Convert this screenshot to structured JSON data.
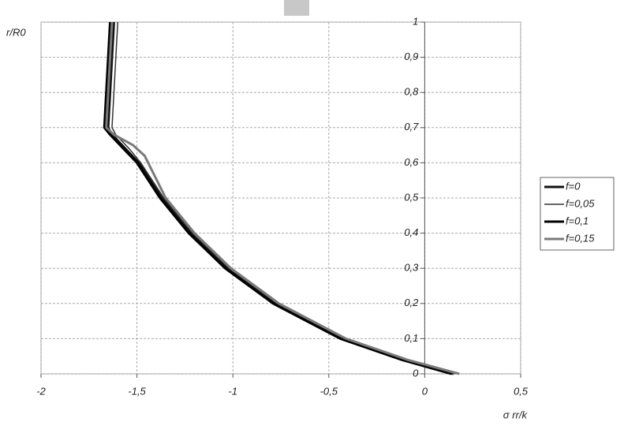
{
  "chart_data": {
    "type": "line",
    "y_label": "r/R0",
    "x_label": "σ rr/k",
    "xlim": [
      -2,
      0.5
    ],
    "xticks": [
      -2,
      {
        "value": -1.5,
        "label": "-1,5"
      },
      -1,
      {
        "value": -0.5,
        "label": "-0,5"
      },
      0,
      {
        "value": 0.5,
        "label": "0,5"
      }
    ],
    "ylim": [
      0,
      1
    ],
    "yticks": [
      0,
      {
        "value": 0.1,
        "label": "0,1"
      },
      {
        "value": 0.2,
        "label": "0,2"
      },
      {
        "value": 0.3,
        "label": "0,3"
      },
      {
        "value": 0.4,
        "label": "0,4"
      },
      {
        "value": 0.5,
        "label": "0,5"
      },
      {
        "value": 0.6,
        "label": "0,6"
      },
      {
        "value": 0.7,
        "label": "0,7"
      },
      {
        "value": 0.8,
        "label": "0,8"
      },
      {
        "value": 0.9,
        "label": "0,9"
      },
      1
    ],
    "grid": true,
    "legend": "right",
    "series": [
      {
        "name": "f=0",
        "color": "#111111",
        "width": 3,
        "x": [
          -1.62,
          -1.63,
          -1.64,
          -1.65,
          -1.63,
          -1.56,
          -1.49,
          -1.37,
          -1.22,
          -1.03,
          -0.78,
          -0.43,
          -0.11,
          0.15
        ],
        "values": [
          1,
          0.9,
          0.8,
          0.7,
          0.68,
          0.64,
          0.6,
          0.5,
          0.4,
          0.3,
          0.2,
          0.1,
          0.04,
          0
        ]
      },
      {
        "name": "f=0,05",
        "color": "#333333",
        "width": 1.5,
        "x": [
          -1.6,
          -1.61,
          -1.62,
          -1.63,
          -1.61,
          -1.54,
          -1.48,
          -1.36,
          -1.21,
          -1.02,
          -0.77,
          -0.42,
          -0.1,
          0.16
        ],
        "values": [
          1,
          0.9,
          0.8,
          0.7,
          0.68,
          0.64,
          0.6,
          0.5,
          0.4,
          0.3,
          0.2,
          0.1,
          0.04,
          0
        ]
      },
      {
        "name": "f=0,1",
        "color": "#000000",
        "width": 3,
        "x": [
          -1.64,
          -1.65,
          -1.66,
          -1.67,
          -1.64,
          -1.57,
          -1.5,
          -1.38,
          -1.23,
          -1.04,
          -0.79,
          -0.44,
          -0.12,
          0.14
        ],
        "values": [
          1,
          0.9,
          0.8,
          0.7,
          0.68,
          0.64,
          0.6,
          0.5,
          0.4,
          0.3,
          0.2,
          0.1,
          0.04,
          0
        ]
      },
      {
        "name": "f=0,15",
        "color": "#7a7a7a",
        "width": 3,
        "x": [
          -1.63,
          -1.64,
          -1.65,
          -1.66,
          -1.62,
          -1.52,
          -1.46,
          -1.35,
          -1.2,
          -1.01,
          -0.76,
          -0.41,
          -0.09,
          0.18
        ],
        "values": [
          1,
          0.9,
          0.8,
          0.7,
          0.68,
          0.65,
          0.62,
          0.5,
          0.4,
          0.3,
          0.2,
          0.1,
          0.04,
          0
        ]
      }
    ]
  }
}
